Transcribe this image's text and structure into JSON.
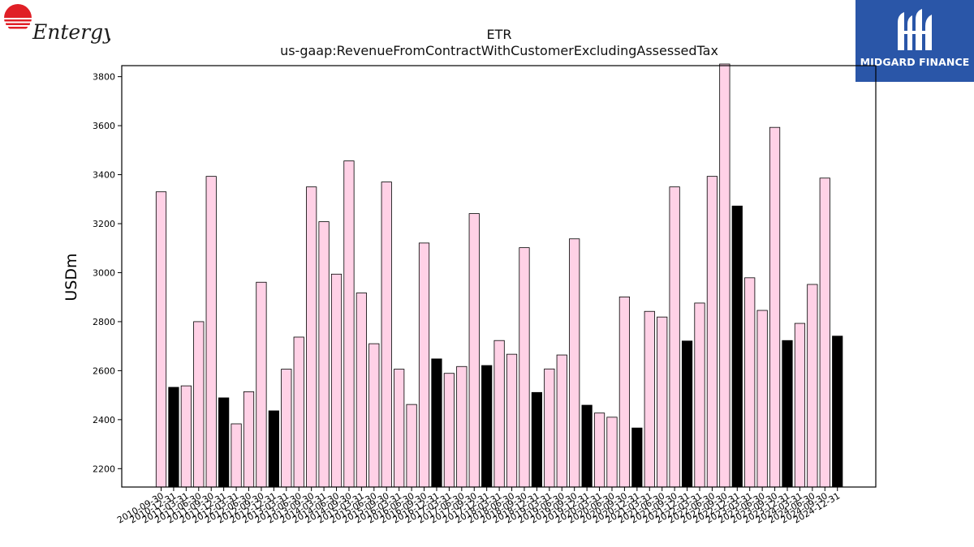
{
  "logos": {
    "left_text": "Entergy",
    "right_text": "MIDGARD FINANCE"
  },
  "colors": {
    "bar_default": "#ffd1e6",
    "bar_highlight": "#000000",
    "bar_edge": "#000000",
    "right_logo_bg": "#2a56a8",
    "left_logo_red": "#e01f26"
  },
  "chart_data": {
    "type": "bar",
    "title": "ETR",
    "subtitle": "us-gaap:RevenueFromContractWithCustomerExcludingAssessedTax",
    "xlabel": "",
    "ylabel": "USDm",
    "ylim": [
      2125,
      3845
    ],
    "yticks": [
      2200,
      2400,
      2600,
      2800,
      3000,
      3200,
      3400,
      3600,
      3800
    ],
    "grid": false,
    "categories": [
      "2010-09-30",
      "2010-12-31",
      "2011-03-31",
      "2011-06-30",
      "2011-09-30",
      "2011-12-31",
      "2012-03-31",
      "2012-06-30",
      "2012-09-30",
      "2012-12-31",
      "2013-03-31",
      "2013-06-30",
      "2013-09-30",
      "2014-03-31",
      "2014-06-30",
      "2014-09-30",
      "2015-03-31",
      "2015-06-30",
      "2015-09-30",
      "2016-03-31",
      "2016-06-30",
      "2016-09-30",
      "2016-12-31",
      "2017-03-31",
      "2017-06-30",
      "2017-09-30",
      "2017-12-31",
      "2018-03-31",
      "2018-06-30",
      "2018-09-30",
      "2018-12-31",
      "2019-03-31",
      "2019-06-30",
      "2019-09-30",
      "2019-12-31",
      "2020-03-31",
      "2020-06-30",
      "2020-09-30",
      "2020-12-31",
      "2021-03-31",
      "2021-06-30",
      "2021-09-30",
      "2021-12-31",
      "2022-03-31",
      "2022-06-30",
      "2022-09-30",
      "2022-12-31",
      "2023-03-31",
      "2023-06-30",
      "2023-09-30",
      "2023-12-31",
      "2024-03-31",
      "2024-06-30",
      "2024-09-30",
      "2024-12-31"
    ],
    "values": [
      3330,
      2532,
      2538,
      2800,
      3393,
      2489,
      2383,
      2514,
      2961,
      2436,
      2606,
      2737,
      3350,
      3208,
      2994,
      3456,
      2917,
      2710,
      3370,
      2606,
      2462,
      3121,
      2648,
      2589,
      2617,
      3241,
      2621,
      2723,
      2667,
      3102,
      2511,
      2607,
      2664,
      3138,
      2459,
      2427,
      2410,
      2901,
      2366,
      2842,
      2819,
      3350,
      2721,
      2876,
      3393,
      3870,
      3272,
      2979,
      2846,
      3593,
      2723,
      2793,
      2952,
      3386,
      2741
    ],
    "highlight": [
      false,
      true,
      false,
      false,
      false,
      true,
      false,
      false,
      false,
      true,
      false,
      false,
      false,
      false,
      false,
      false,
      false,
      false,
      false,
      false,
      false,
      false,
      true,
      false,
      false,
      false,
      true,
      false,
      false,
      false,
      true,
      false,
      false,
      false,
      true,
      false,
      false,
      false,
      true,
      false,
      false,
      false,
      true,
      false,
      false,
      false,
      true,
      false,
      false,
      false,
      true,
      false,
      false,
      false,
      true
    ]
  }
}
